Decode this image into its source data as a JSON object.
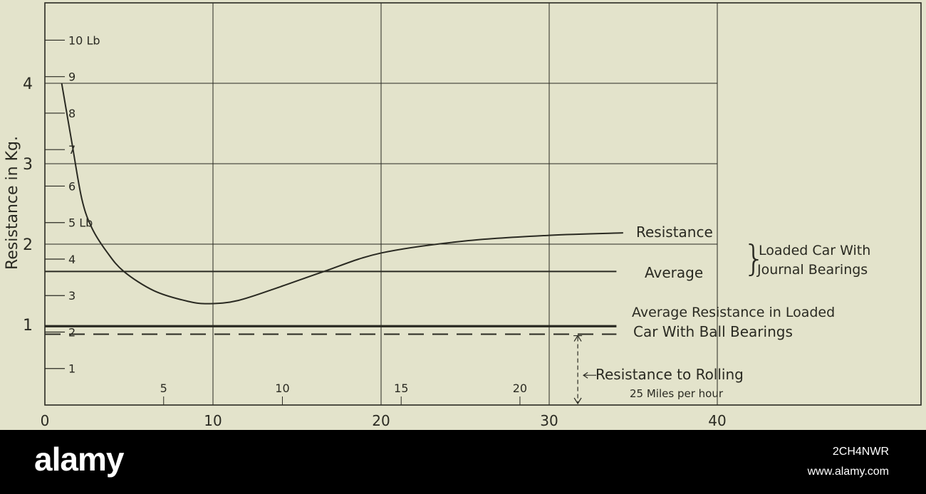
{
  "chart_data": {
    "type": "line",
    "ylabel": "Resistance in Kg.",
    "xlim": [
      0,
      52
    ],
    "ylim": [
      0,
      4.8
    ],
    "grid": true,
    "x_ticks": [
      "0",
      "10",
      "20",
      "30",
      "40"
    ],
    "y_ticks": [
      "1",
      "2",
      "3",
      "4"
    ],
    "secondary_y_ticks": [
      "1",
      "2",
      "3",
      "4",
      "5 Lb",
      "6",
      "7",
      "8",
      "9",
      "10 Lb"
    ],
    "secondary_x_ticks": [
      "5",
      "10",
      "15",
      "20"
    ],
    "secondary_x_label": "25 Miles per hour",
    "series": [
      {
        "name": "Resistance",
        "style": "solid",
        "x": [
          1.0,
          1.6,
          2.2,
          2.8,
          3.7,
          4.7,
          6.5,
          8.5,
          9.8,
          11.5,
          14,
          16.6,
          20,
          25,
          30,
          34.4
        ],
        "y": [
          4.0,
          3.27,
          2.56,
          2.2,
          1.9,
          1.66,
          1.42,
          1.29,
          1.26,
          1.3,
          1.47,
          1.66,
          1.89,
          2.04,
          2.11,
          2.14
        ]
      },
      {
        "name": "Average",
        "style": "solid",
        "x": [
          0,
          34
        ],
        "y": [
          1.66,
          1.66
        ]
      },
      {
        "name": "Average Resistance in Loaded Car With Ball Bearings",
        "style": "thick",
        "x": [
          0,
          34
        ],
        "y": [
          0.98,
          0.98
        ]
      },
      {
        "name": "Resistance to Rolling",
        "style": "dashed",
        "x": [
          0,
          34
        ],
        "y": [
          0.88,
          0.88
        ]
      }
    ],
    "annotations": {
      "resistance": "Resistance",
      "average": "Average",
      "journal_group_line1": "Loaded Car With",
      "journal_group_line2": "Journal Bearings",
      "ball_line1": "Average Resistance in Loaded",
      "ball_line2": "Car With Ball Bearings",
      "rolling": "Resistance to Rolling"
    },
    "colors": {
      "paper": "#e3e3cb",
      "ink": "#2a2a22"
    }
  },
  "watermark": {
    "logo": "alamy",
    "code": "2CH4NWR",
    "site": "www.alamy.com"
  }
}
